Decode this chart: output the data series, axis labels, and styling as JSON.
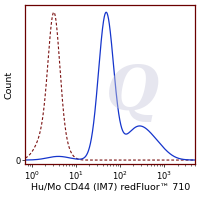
{
  "title": "",
  "xlabel": "Hu/Mo CD44 (IM7) redFluor™ 710",
  "ylabel": "Count",
  "xlim_log": [
    -0.15,
    3.7
  ],
  "ylim": [
    -0.03,
    1.05
  ],
  "background_color": "#ffffff",
  "plot_bg_color": "#ffffff",
  "border_color": "#6b0000",
  "solid_line_color": "#1535cc",
  "dashed_line_color": "#7a1010",
  "dashed_fill_color": "#cc3333",
  "solid_fill_color": "#3355cc",
  "tick_label_size": 6.0,
  "axis_label_size": 6.8,
  "watermark_text": "Q",
  "watermark_color": "#c8c8dc",
  "watermark_alpha": 0.45
}
